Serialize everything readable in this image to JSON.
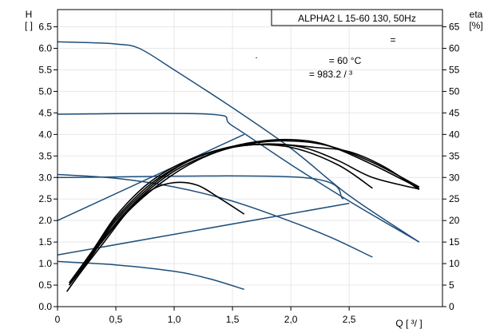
{
  "chart_data": {
    "type": "line",
    "title": "ALPHA2 L 15-60 130, 50Hz",
    "left_axis": {
      "label_line1": "H",
      "label_line2": "[ ]",
      "range": [
        0,
        6.9
      ],
      "ticks": [
        {
          "v": 0.0,
          "t": "0.0"
        },
        {
          "v": 0.5,
          "t": "0.5"
        },
        {
          "v": 1.0,
          "t": "1.0"
        },
        {
          "v": 1.5,
          "t": "1.5"
        },
        {
          "v": 2.0,
          "t": "2.0"
        },
        {
          "v": 2.5,
          "t": "2.5"
        },
        {
          "v": 3.0,
          "t": "3.0"
        },
        {
          "v": 3.5,
          "t": "3.5"
        },
        {
          "v": 4.0,
          "t": "4.0"
        },
        {
          "v": 4.5,
          "t": "4.5"
        },
        {
          "v": 5.0,
          "t": "5.0"
        },
        {
          "v": 5.5,
          "t": "5.5"
        },
        {
          "v": 6.0,
          "t": "6.0"
        },
        {
          "v": 6.5,
          "t": "6.5"
        }
      ]
    },
    "right_axis": {
      "label_line1": "eta",
      "label_line2": "[%]",
      "range": [
        0,
        69
      ],
      "ticks": [
        {
          "v": 0,
          "t": "0"
        },
        {
          "v": 5,
          "t": "5"
        },
        {
          "v": 10,
          "t": "10"
        },
        {
          "v": 15,
          "t": "15"
        },
        {
          "v": 20,
          "t": "20"
        },
        {
          "v": 25,
          "t": "25"
        },
        {
          "v": 30,
          "t": "30"
        },
        {
          "v": 35,
          "t": "35"
        },
        {
          "v": 40,
          "t": "40"
        },
        {
          "v": 45,
          "t": "45"
        },
        {
          "v": 50,
          "t": "50"
        },
        {
          "v": 55,
          "t": "55"
        },
        {
          "v": 60,
          "t": "60"
        },
        {
          "v": 65,
          "t": "65"
        }
      ]
    },
    "x_axis": {
      "label": "Q [  ³/  ]",
      "range": [
        0,
        3.3
      ],
      "ticks": [
        {
          "v": 0,
          "t": "0"
        },
        {
          "v": 0.5,
          "t": "0,5"
        },
        {
          "v": 1.0,
          "t": "1,0"
        },
        {
          "v": 1.5,
          "t": "1,5"
        },
        {
          "v": 2.0,
          "t": "2,0"
        },
        {
          "v": 2.5,
          "t": "2,5"
        }
      ]
    },
    "grid": true,
    "annotations": [
      "=",
      "= 60 °C",
      "= 983.2    /  ³",
      "."
    ],
    "colors": {
      "head_curves": "#1f4e7a",
      "efficiency_curves": "#000000",
      "grid": "#e8e8e8"
    },
    "head_curves": [
      {
        "points": [
          [
            0,
            6.15
          ],
          [
            0.3,
            6.13
          ],
          [
            0.5,
            6.1
          ],
          [
            0.7,
            6.0
          ],
          [
            1.0,
            5.5
          ],
          [
            1.5,
            4.62
          ],
          [
            2.0,
            3.68
          ],
          [
            2.5,
            2.58
          ],
          [
            3.1,
            1.5
          ]
        ]
      },
      {
        "points": [
          [
            0,
            4.47
          ],
          [
            1.3,
            4.47
          ],
          [
            1.5,
            4.2
          ],
          [
            2.0,
            3.3
          ],
          [
            2.5,
            2.45
          ],
          [
            3.1,
            1.5
          ]
        ]
      },
      {
        "points": [
          [
            0,
            3.0
          ],
          [
            2.1,
            3.0
          ],
          [
            2.45,
            2.5
          ]
        ]
      },
      {
        "points": [
          [
            0,
            3.07
          ],
          [
            0.5,
            2.98
          ],
          [
            1.0,
            2.78
          ],
          [
            1.5,
            2.45
          ],
          [
            2.0,
            1.98
          ],
          [
            2.35,
            1.6
          ],
          [
            2.7,
            1.15
          ]
        ]
      },
      {
        "points": [
          [
            0,
            1.05
          ],
          [
            0.5,
            0.97
          ],
          [
            1.0,
            0.82
          ],
          [
            1.3,
            0.65
          ],
          [
            1.6,
            0.4
          ]
        ]
      },
      {
        "points": [
          [
            0,
            2.0
          ],
          [
            1.6,
            4.0
          ]
        ]
      },
      {
        "points": [
          [
            0,
            1.2
          ],
          [
            2.5,
            2.4
          ]
        ]
      }
    ],
    "efficiency_curves": [
      {
        "points": [
          [
            0.08,
            3.5
          ],
          [
            0.2,
            8
          ],
          [
            0.4,
            15
          ],
          [
            0.6,
            22
          ],
          [
            0.8,
            27
          ],
          [
            1.0,
            28.8
          ],
          [
            1.2,
            28.2
          ],
          [
            1.4,
            25
          ],
          [
            1.6,
            21.5
          ]
        ]
      },
      {
        "points": [
          [
            0.1,
            5.5
          ],
          [
            0.3,
            13
          ],
          [
            0.5,
            21
          ],
          [
            0.75,
            28
          ],
          [
            1.0,
            32.5
          ],
          [
            1.3,
            35.8
          ],
          [
            1.6,
            37.5
          ],
          [
            2.0,
            37
          ],
          [
            2.4,
            33
          ],
          [
            2.7,
            27.5
          ]
        ]
      },
      {
        "points": [
          [
            0.1,
            5
          ],
          [
            0.3,
            12.5
          ],
          [
            0.5,
            20.5
          ],
          [
            0.8,
            28.5
          ],
          [
            1.1,
            33.5
          ],
          [
            1.4,
            36.5
          ],
          [
            1.8,
            37.8
          ],
          [
            2.2,
            37
          ],
          [
            2.5,
            36
          ],
          [
            2.8,
            32.5
          ],
          [
            3.1,
            27.2
          ]
        ]
      },
      {
        "points": [
          [
            0.1,
            5
          ],
          [
            0.3,
            12
          ],
          [
            0.5,
            20
          ],
          [
            0.8,
            28
          ],
          [
            1.1,
            33.5
          ],
          [
            1.4,
            36.5
          ],
          [
            1.7,
            38.3
          ],
          [
            2.0,
            38.8
          ],
          [
            2.3,
            37.6
          ],
          [
            2.7,
            33
          ],
          [
            3.1,
            27.5
          ]
        ]
      },
      {
        "points": [
          [
            0.12,
            6
          ],
          [
            0.35,
            14
          ],
          [
            0.55,
            21
          ],
          [
            0.8,
            27.5
          ],
          [
            1.1,
            33
          ],
          [
            1.5,
            37
          ],
          [
            1.9,
            38.5
          ],
          [
            2.3,
            37.5
          ],
          [
            2.7,
            33.5
          ],
          [
            3.1,
            27.8
          ]
        ]
      },
      {
        "points": [
          [
            0.12,
            6
          ],
          [
            0.35,
            14
          ],
          [
            0.6,
            22
          ],
          [
            0.9,
            29
          ],
          [
            1.2,
            34
          ],
          [
            1.5,
            37
          ],
          [
            1.8,
            37.7
          ],
          [
            2.1,
            37
          ],
          [
            2.4,
            34
          ],
          [
            2.7,
            30
          ],
          [
            3.1,
            27.3
          ]
        ]
      }
    ]
  }
}
